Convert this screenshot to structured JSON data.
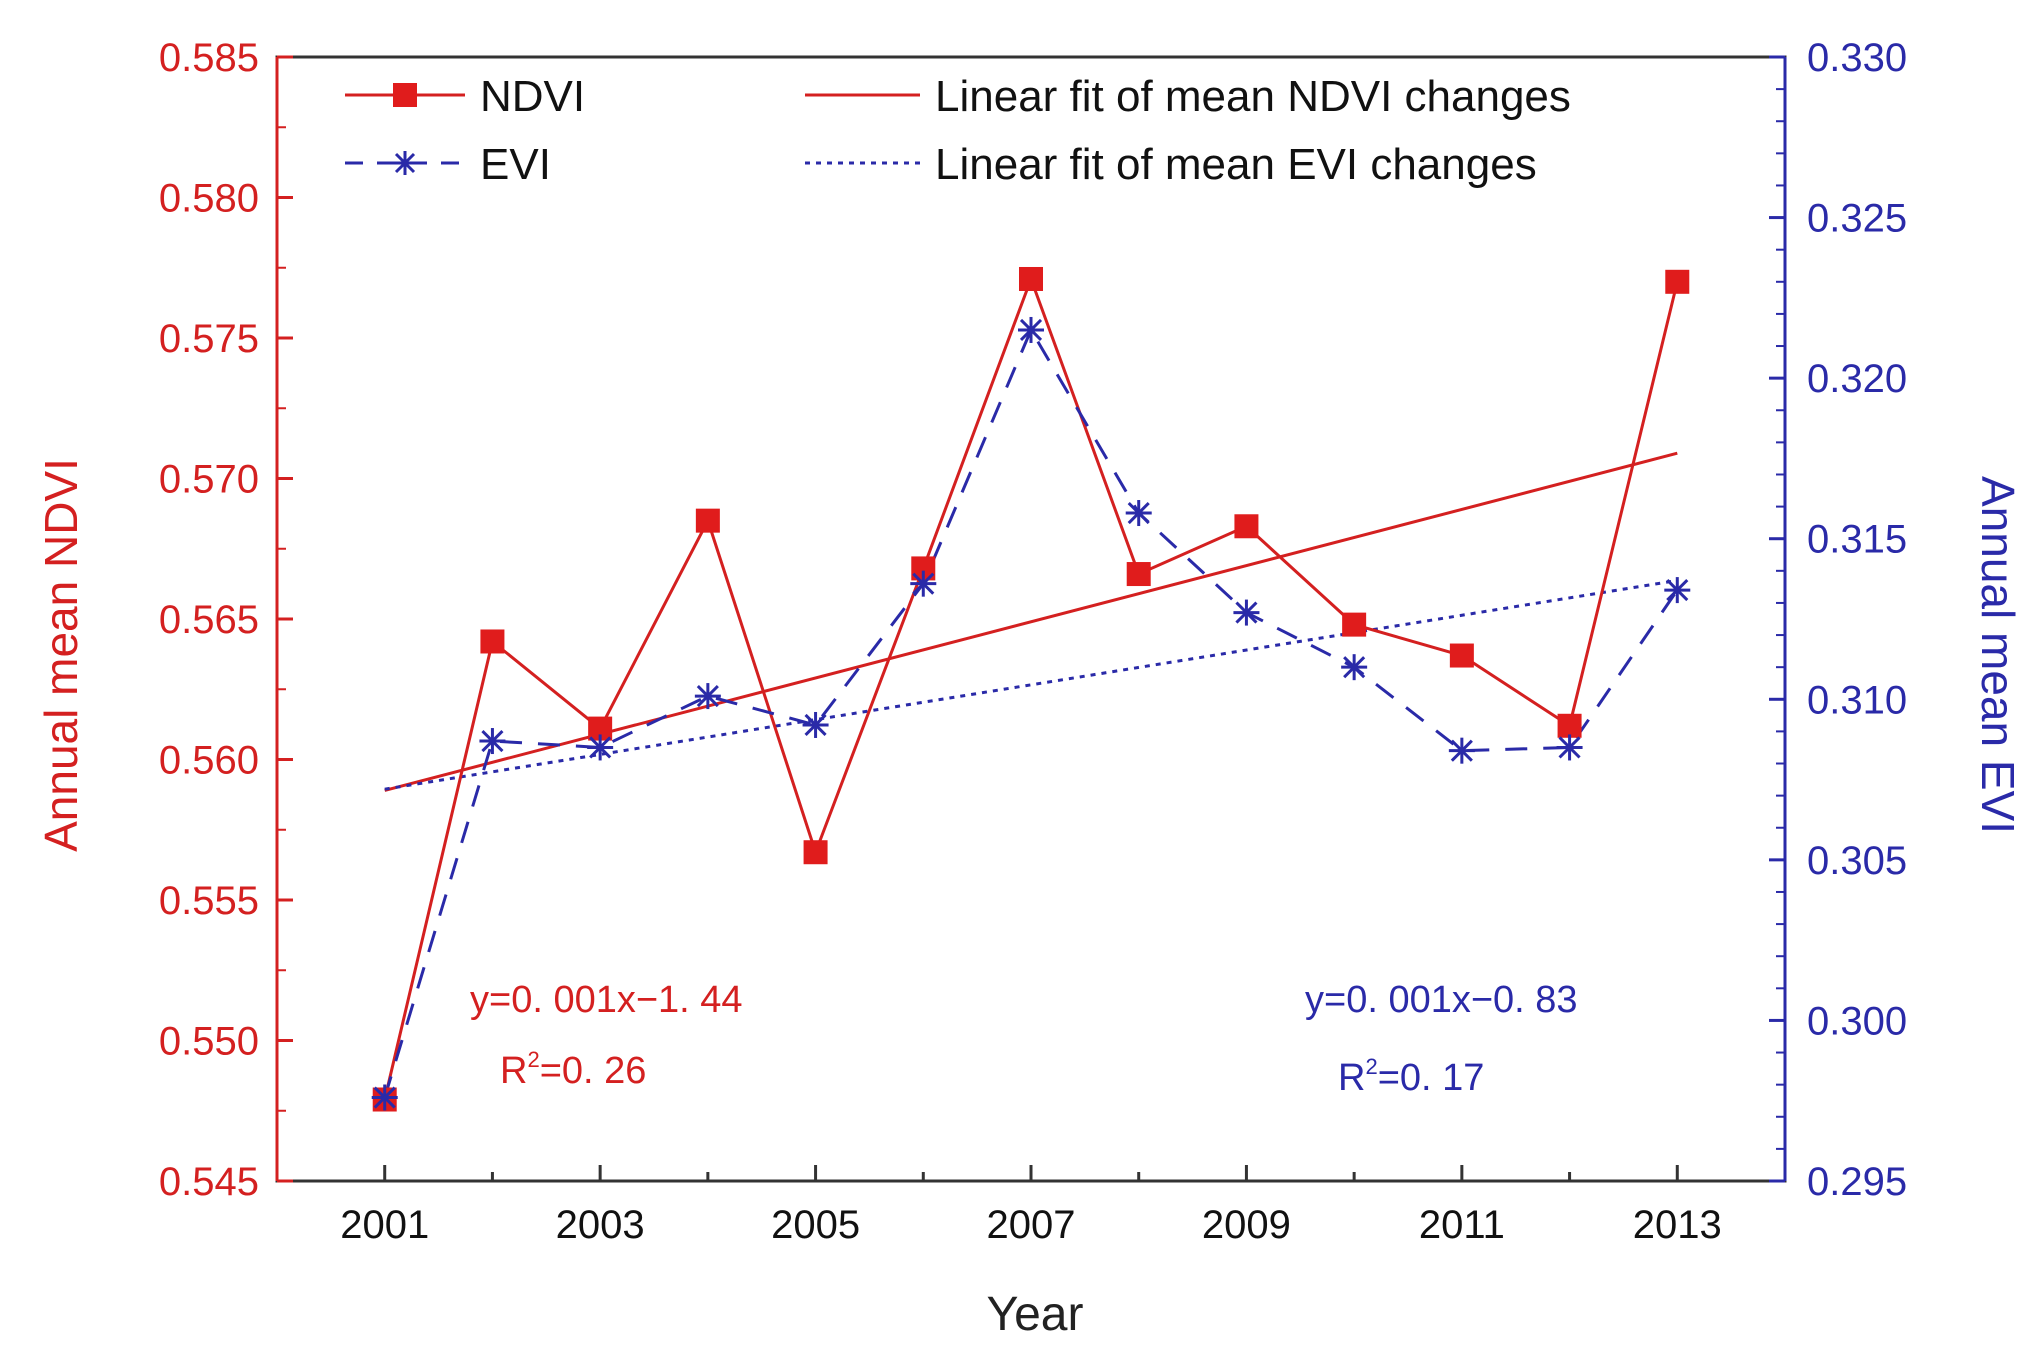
{
  "chart_data": {
    "type": "line",
    "title": "",
    "xlabel": "Year",
    "ylabel_left": "Annual mean NDVI",
    "ylabel_right": "Annual mean EVI",
    "x": [
      2001,
      2002,
      2003,
      2004,
      2005,
      2006,
      2007,
      2008,
      2009,
      2010,
      2011,
      2012,
      2013
    ],
    "xlim": [
      2000,
      2014
    ],
    "xticks": [
      "2001",
      "2003",
      "2005",
      "2007",
      "2009",
      "2011",
      "2013"
    ],
    "ylim_left": [
      0.545,
      0.585
    ],
    "yticks_left": [
      "0.545",
      "0.550",
      "0.555",
      "0.560",
      "0.565",
      "0.570",
      "0.575",
      "0.580",
      "0.585"
    ],
    "ylim_right": [
      0.295,
      0.33
    ],
    "yticks_right": [
      "0.295",
      "0.300",
      "0.305",
      "0.310",
      "0.315",
      "0.320",
      "0.325",
      "0.330"
    ],
    "series": [
      {
        "name": "NDVI",
        "axis": "left",
        "color": "#d42020",
        "marker": "square",
        "values": [
          0.5479,
          0.5642,
          0.5611,
          0.5685,
          0.5567,
          0.5668,
          0.5771,
          0.5666,
          0.5683,
          0.5648,
          0.5637,
          0.5612,
          0.577
        ]
      },
      {
        "name": "EVI",
        "axis": "right",
        "color": "#2a2aa8",
        "marker": "asterisk",
        "values": [
          0.2976,
          0.3087,
          0.3085,
          0.3101,
          0.3092,
          0.3136,
          0.3215,
          0.3158,
          0.3127,
          0.311,
          0.3084,
          0.3085,
          0.3134
        ]
      }
    ],
    "fits": [
      {
        "name": "Linear fit of mean NDVI changes",
        "axis": "left",
        "color": "#d42020",
        "style": "solid",
        "x": [
          2001,
          2013
        ],
        "y": [
          0.5589,
          0.5709
        ],
        "equation": "y=0. 001x−1. 44",
        "r2_prefix": "R",
        "r2_suffix": "=0. 26"
      },
      {
        "name": "Linear fit of mean EVI changes",
        "axis": "right",
        "color": "#2a2aa8",
        "style": "dotted",
        "x": [
          2001,
          2013
        ],
        "y": [
          0.3072,
          0.3137
        ],
        "equation": "y=0. 001x−0. 83",
        "r2_prefix": "R",
        "r2_suffix": "=0. 17"
      }
    ],
    "r2_superscript": "2",
    "legend_position": "top"
  }
}
